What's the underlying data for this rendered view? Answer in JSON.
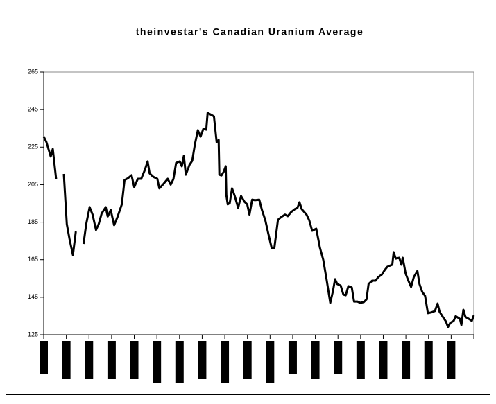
{
  "chart_data": {
    "type": "line",
    "title": "theinvestar's Canadian Uranium Average",
    "x": [
      0,
      1.2,
      3.1,
      4,
      5.5,
      7,
      8.9,
      10.2,
      11.4,
      12.9,
      14.2,
      15.5,
      17.6,
      18.8,
      20.3,
      21.6,
      23.1,
      24.3,
      25.6,
      27.4,
      28.3,
      29.6,
      31.1,
      32.6,
      34.5,
      35.7,
      37.3,
      38.8,
      40,
      41.6,
      43.1,
      44.7,
      45.9,
      46.8,
      48.4,
      50.2,
      51.1,
      53,
      54.8,
      56.1,
      57.3,
      58.5,
      60.1,
      61,
      61.9,
      62.8,
      64.4,
      65.6,
      66.8,
      68.1,
      69.3,
      70.5,
      71.8,
      72.4,
      74.2,
      75.2,
      76.4,
      77.3,
      77.6,
      78.5,
      79.5,
      80.4,
      80.7,
      81.3,
      82.2,
      83.2,
      84.4,
      85.9,
      87.2,
      88.7,
      89.9,
      90.9,
      92.1,
      93.3,
      95.2,
      96.4,
      97.9,
      99.2,
      100.7,
      101.9,
      103.5,
      105,
      106.6,
      107.8,
      109.3,
      110.9,
      112.1,
      113,
      114,
      116.1,
      117.3,
      118.6,
      120.4,
      122,
      123.5,
      125,
      126.6,
      127.8,
      128.7,
      129.7,
      131.2,
      132.4,
      133.4,
      134.6,
      136.1,
      137.1,
      138.6,
      139.8,
      141.4,
      142.6,
      143.5,
      145.1,
      146.6,
      147.8,
      149.4,
      150.6,
      151.8,
      153.1,
      154,
      154.6,
      155.5,
      157.1,
      158,
      158.6,
      159.9,
      161.1,
      162.3,
      163.5,
      165.1,
      166,
      167.2,
      168.5,
      169.7,
      171.2,
      172.8,
      174,
      174.9,
      176.5,
      177.7,
      178.6,
      179.6,
      181.1,
      182,
      183.9,
      184.5,
      185.4,
      186.3,
      187.9,
      189.1,
      190
    ],
    "series": [
      {
        "color": "#000000",
        "values": [
          230.6,
          227.7,
          220,
          224,
          208,
          null,
          210.7,
          184,
          176,
          167.5,
          180,
          null,
          173.4,
          184,
          193,
          189,
          180.8,
          184,
          189.6,
          193,
          188,
          191.5,
          183.4,
          187.8,
          194.5,
          207.4,
          208.5,
          210,
          203.7,
          208.1,
          208.1,
          212.9,
          217.4,
          211,
          209.2,
          208.1,
          203,
          205.5,
          208.1,
          205,
          208,
          216.6,
          217.4,
          214.8,
          220.3,
          210.3,
          215.5,
          217.7,
          226.6,
          234,
          230.6,
          234.7,
          234.3,
          243.2,
          242.1,
          241.4,
          227.7,
          228.8,
          210.3,
          209.9,
          211.8,
          214.8,
          199.3,
          194.5,
          195.2,
          203,
          198.9,
          192.6,
          198.9,
          195.9,
          194.5,
          189,
          197,
          196.7,
          197,
          191.5,
          186,
          179,
          171.2,
          171.2,
          186.3,
          187.8,
          189,
          188.2,
          190.4,
          191.9,
          192.6,
          195.6,
          191.9,
          189,
          186,
          180.4,
          181.5,
          171.5,
          164.9,
          154.2,
          142,
          148.3,
          154.6,
          152,
          151.2,
          146.4,
          146,
          150.9,
          150.2,
          142.7,
          142.7,
          142,
          142.4,
          143.8,
          152,
          153.8,
          153.8,
          155.7,
          157.1,
          159.4,
          161.2,
          161.9,
          162.3,
          169,
          165.6,
          166,
          162.3,
          166,
          157.5,
          153.8,
          150.5,
          155.7,
          159,
          152,
          147.9,
          145.7,
          136.5,
          136.9,
          137.6,
          141.6,
          137.2,
          134.2,
          132,
          129.1,
          131.3,
          132.4,
          134.9,
          133.4,
          130.2,
          138.3,
          134.5,
          133.4,
          132.4,
          135.3
        ]
      }
    ],
    "xlim": [
      0,
      190
    ],
    "xticks": [
      0,
      10,
      20,
      30,
      40,
      50,
      60,
      70,
      80,
      90,
      100,
      110,
      120,
      130,
      140,
      150,
      160,
      170,
      180,
      190
    ],
    "ylim": [
      125,
      265
    ],
    "yticks": [
      125,
      145,
      165,
      185,
      205,
      225,
      245,
      265
    ]
  }
}
